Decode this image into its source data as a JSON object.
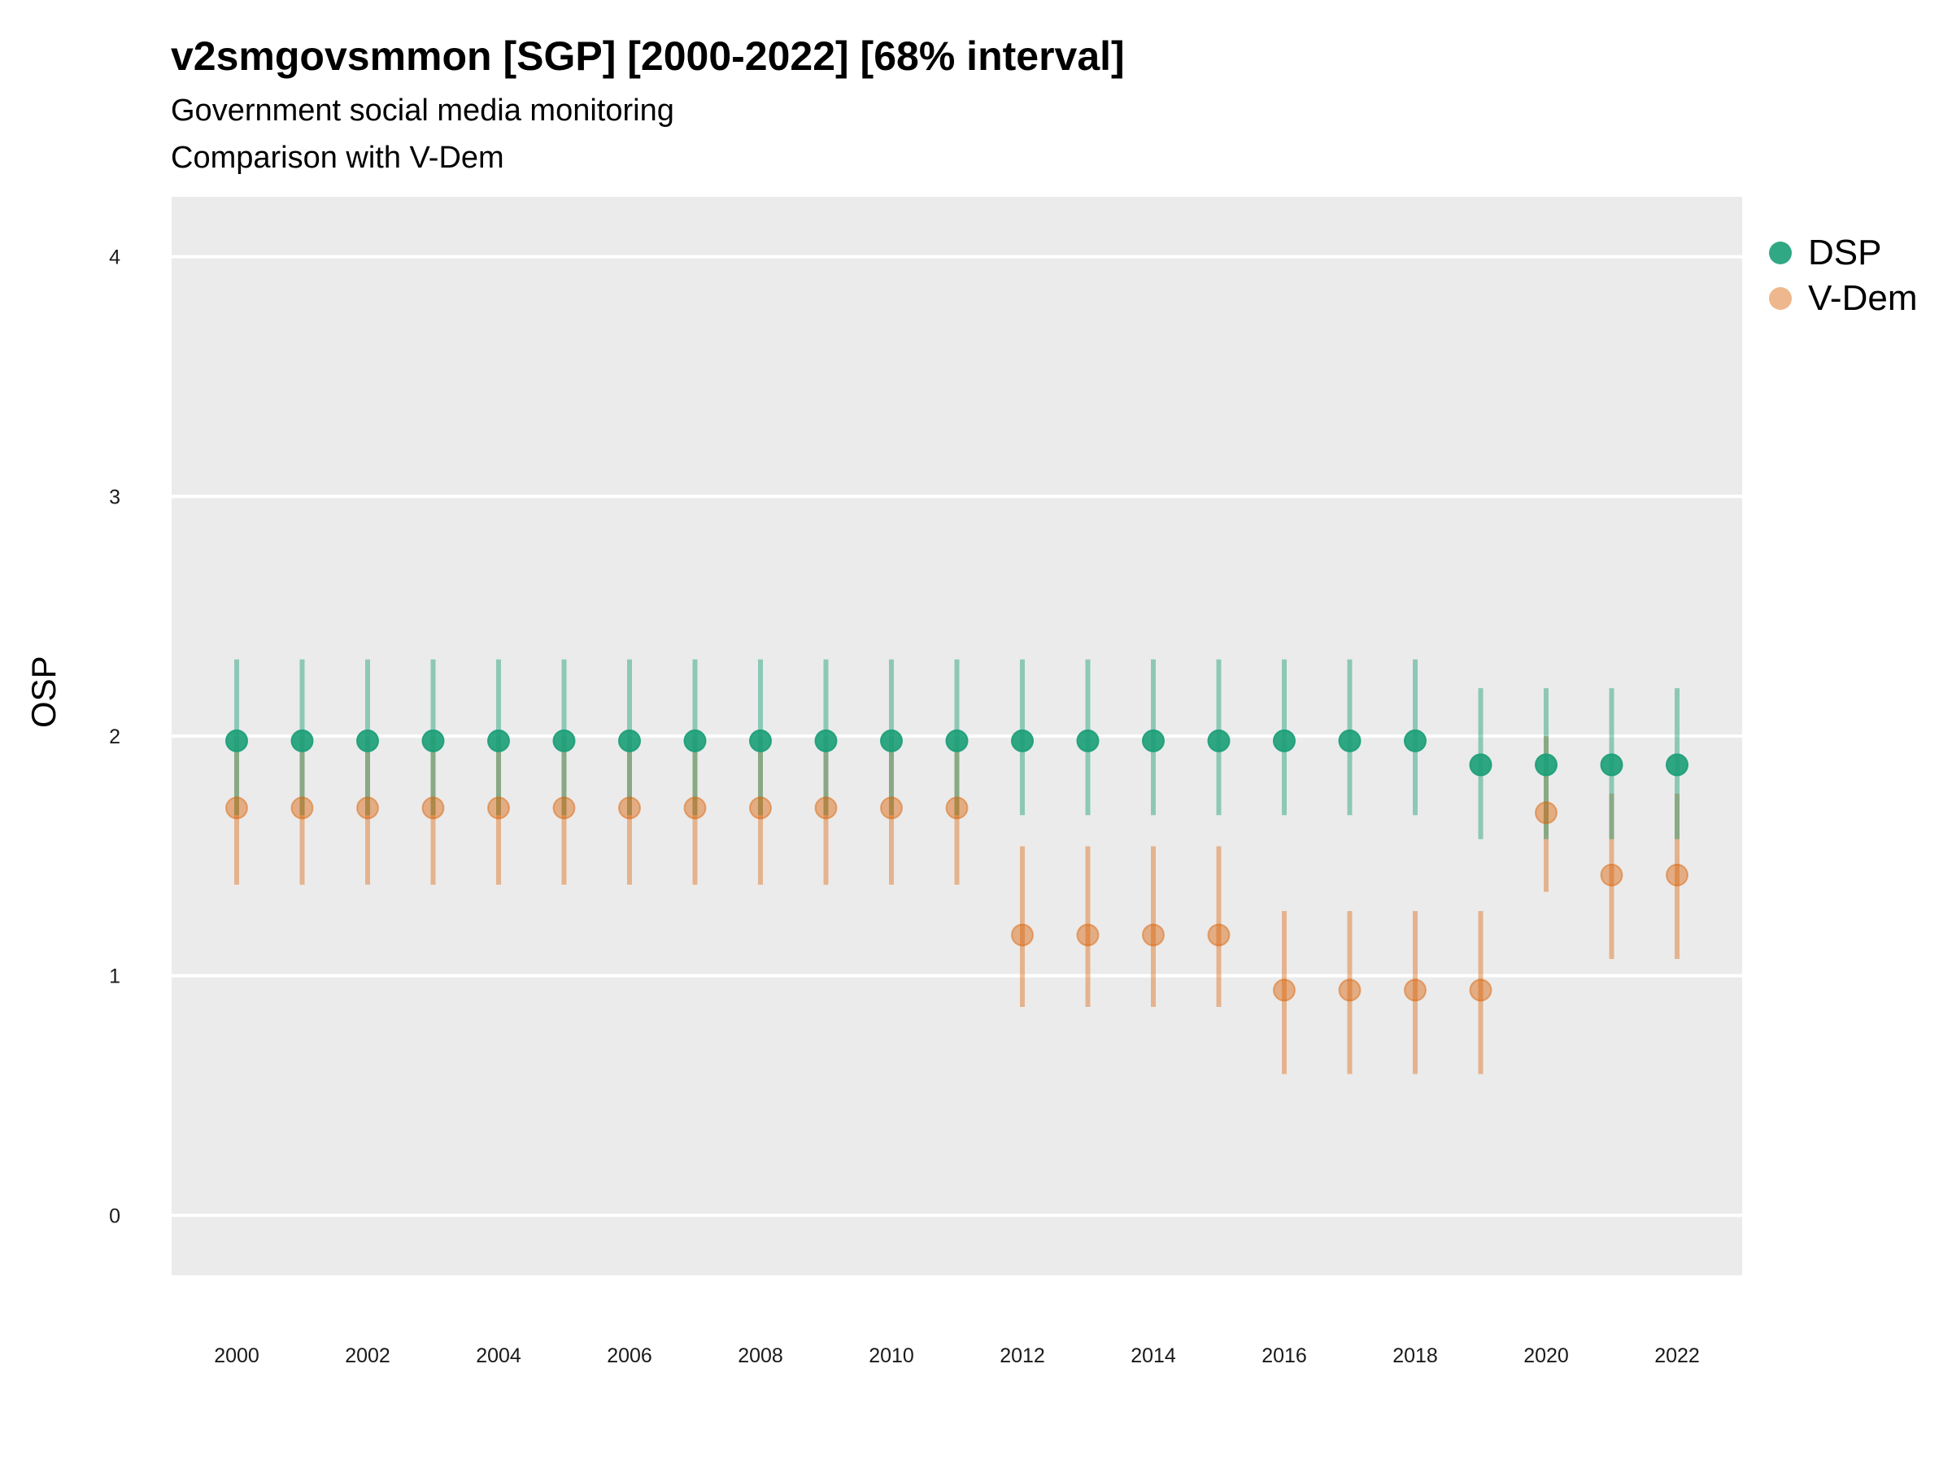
{
  "chart_data": {
    "type": "scatter",
    "title": "v2smgovsmmon [SGP] [2000-2022] [68% interval]",
    "subtitle": [
      "Government social media monitoring",
      "Comparison with V-Dem"
    ],
    "xlabel": "",
    "ylabel": "OSP",
    "ylim": [
      -0.25,
      4.25
    ],
    "yticks": [
      "0",
      "1",
      "2",
      "3",
      "4"
    ],
    "xticks": [
      "2000",
      "2002",
      "2004",
      "2006",
      "2008",
      "2010",
      "2012",
      "2014",
      "2016",
      "2018",
      "2020",
      "2022"
    ],
    "x": [
      2000,
      2001,
      2002,
      2003,
      2004,
      2005,
      2006,
      2007,
      2008,
      2009,
      2010,
      2011,
      2012,
      2013,
      2014,
      2015,
      2016,
      2017,
      2018,
      2019,
      2020,
      2021,
      2022
    ],
    "grid": true,
    "legend_position": "right",
    "series": [
      {
        "name": "DSP",
        "color": "#1b9e77",
        "values": [
          1.98,
          1.98,
          1.98,
          1.98,
          1.98,
          1.98,
          1.98,
          1.98,
          1.98,
          1.98,
          1.98,
          1.98,
          1.98,
          1.98,
          1.98,
          1.98,
          1.98,
          1.98,
          1.98,
          1.88,
          1.88,
          1.88,
          1.88
        ],
        "lower": [
          1.67,
          1.67,
          1.67,
          1.67,
          1.67,
          1.67,
          1.67,
          1.67,
          1.67,
          1.67,
          1.67,
          1.67,
          1.67,
          1.67,
          1.67,
          1.67,
          1.67,
          1.67,
          1.67,
          1.57,
          1.57,
          1.57,
          1.57
        ],
        "upper": [
          2.32,
          2.32,
          2.32,
          2.32,
          2.32,
          2.32,
          2.32,
          2.32,
          2.32,
          2.32,
          2.32,
          2.32,
          2.32,
          2.32,
          2.32,
          2.32,
          2.32,
          2.32,
          2.32,
          2.2,
          2.2,
          2.2,
          2.2
        ]
      },
      {
        "name": "V-Dem",
        "color": "#d95f02",
        "values": [
          1.7,
          1.7,
          1.7,
          1.7,
          1.7,
          1.7,
          1.7,
          1.7,
          1.7,
          1.7,
          1.7,
          1.7,
          1.17,
          1.17,
          1.17,
          1.17,
          0.94,
          0.94,
          0.94,
          0.94,
          1.68,
          1.42,
          1.42
        ],
        "lower": [
          1.38,
          1.38,
          1.38,
          1.38,
          1.38,
          1.38,
          1.38,
          1.38,
          1.38,
          1.38,
          1.38,
          1.38,
          0.87,
          0.87,
          0.87,
          0.87,
          0.59,
          0.59,
          0.59,
          0.59,
          1.35,
          1.07,
          1.07
        ],
        "upper": [
          2.0,
          2.0,
          2.0,
          2.0,
          2.0,
          2.0,
          2.0,
          2.0,
          2.0,
          2.0,
          2.0,
          2.0,
          1.54,
          1.54,
          1.54,
          1.54,
          1.27,
          1.27,
          1.27,
          1.27,
          2.0,
          1.76,
          1.76
        ]
      }
    ]
  }
}
